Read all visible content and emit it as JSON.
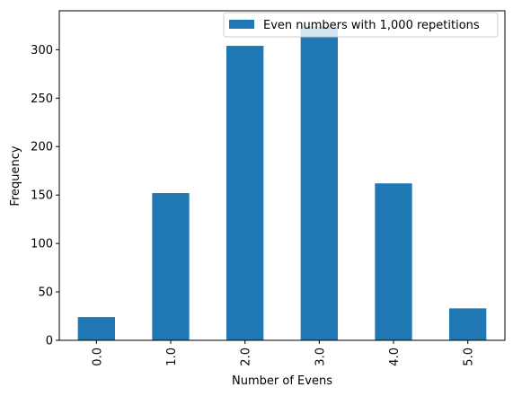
{
  "chart_data": {
    "type": "bar",
    "title": "",
    "xlabel": "Number of Evens",
    "ylabel": "Frequency",
    "categories": [
      "0.0",
      "1.0",
      "2.0",
      "3.0",
      "4.0",
      "5.0"
    ],
    "series": [
      {
        "name": "Even numbers with 1,000 repetitions",
        "color": "#1f77b4",
        "values": [
          24,
          152,
          304,
          324,
          162,
          33
        ]
      }
    ],
    "ylim": [
      0,
      340.2
    ],
    "yticks": [
      0,
      50,
      100,
      150,
      200,
      250,
      300
    ],
    "x_tick_rotation": "vertical",
    "legend": "top-right",
    "grid": false
  }
}
